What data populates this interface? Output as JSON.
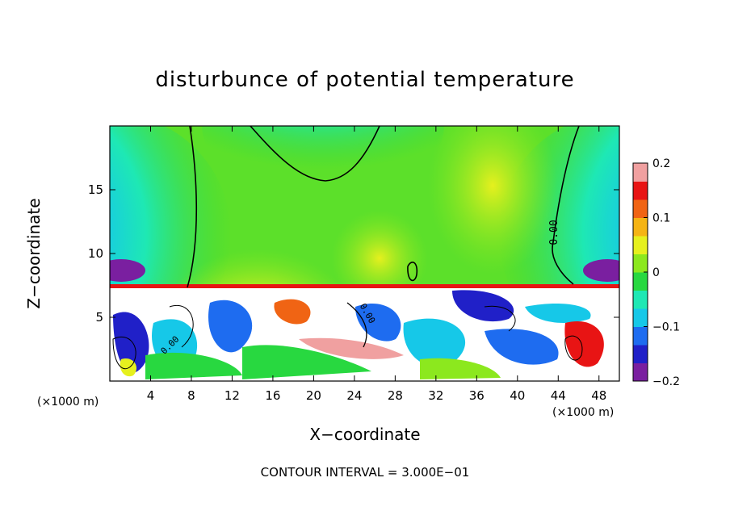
{
  "chart_data": {
    "type": "heatmap",
    "title": "disturbunce of potential temperature",
    "xlabel": "X−coordinate",
    "ylabel": "Z−coordinate",
    "x_unit_left": "(×1000 m)",
    "x_unit_right": "(×1000 m)",
    "footer": "CONTOUR INTERVAL = 3.000E−01",
    "xlim": [
      0,
      50
    ],
    "ylim": [
      0,
      20
    ],
    "x_ticks": [
      4,
      8,
      12,
      16,
      20,
      24,
      28,
      32,
      36,
      40,
      44,
      48
    ],
    "x_tick_labels": [
      "4",
      "8",
      "12",
      "16",
      "20",
      "24",
      "28",
      "32",
      "36",
      "40",
      "44",
      "48"
    ],
    "y_ticks": [
      5,
      10,
      15
    ],
    "y_tick_labels": [
      "5",
      "10",
      "15"
    ],
    "colorbar": {
      "range": [
        -0.2,
        0.2
      ],
      "ticks": [
        -0.2,
        -0.1,
        0,
        0.1,
        0.2
      ],
      "tick_labels": [
        "−0.2",
        "−0.1",
        "0",
        "0.1",
        "0.2"
      ],
      "colors": [
        "#7a1fa0",
        "#2020c8",
        "#1e6cf0",
        "#16c8e8",
        "#1ee8b4",
        "#28d840",
        "#8ce81e",
        "#e6f01e",
        "#f5b414",
        "#f06414",
        "#e81414",
        "#f0a0a0"
      ]
    },
    "contour_labels": [
      "0.00",
      "0.00",
      "0.00"
    ],
    "contour_interval": 0.3
  }
}
